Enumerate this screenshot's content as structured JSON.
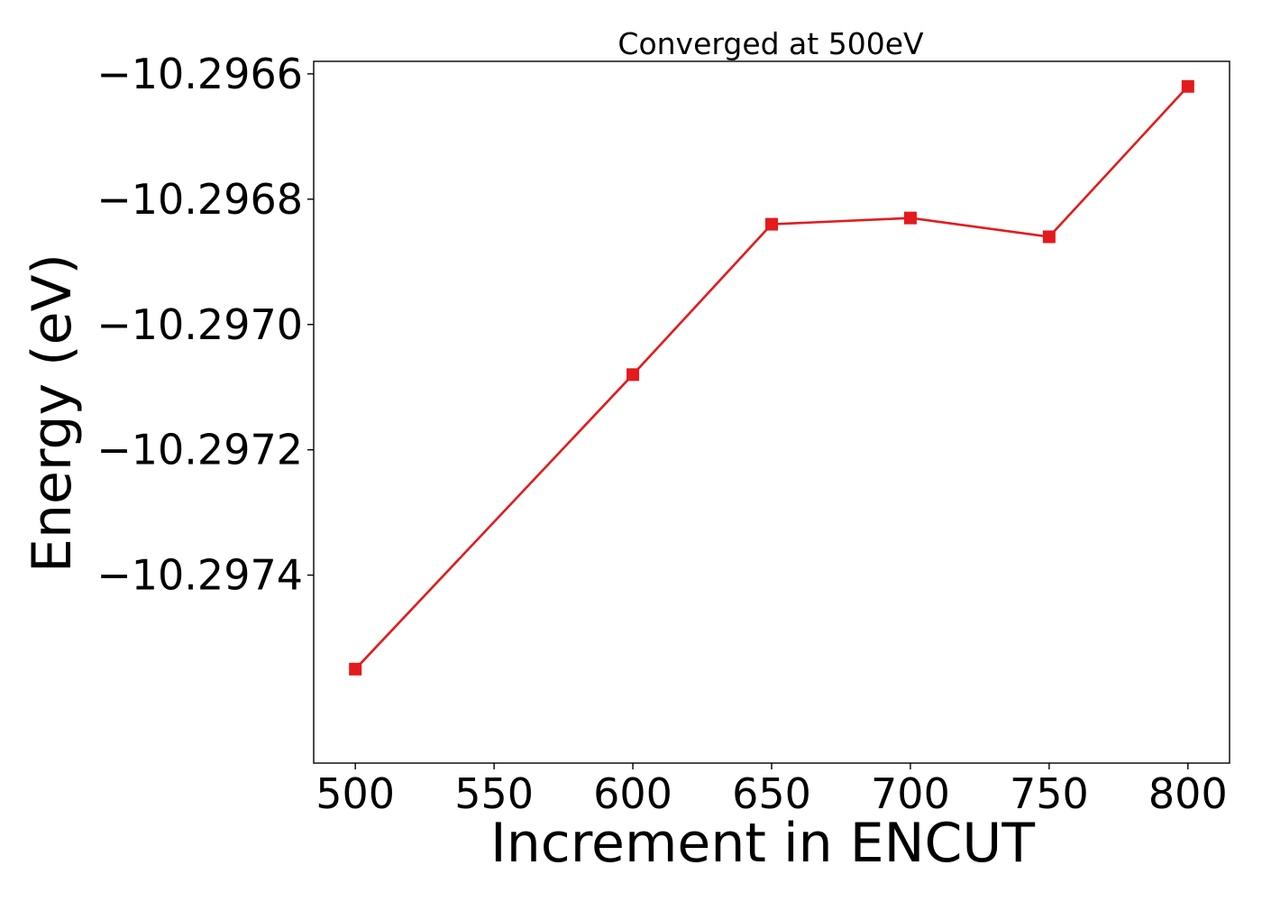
{
  "chart_data": {
    "type": "line",
    "title": "Converged at 500eV",
    "xlabel": "Increment in ENCUT",
    "ylabel": "Energy (eV)",
    "x": [
      500,
      600,
      650,
      700,
      750,
      800
    ],
    "series": [
      {
        "values": [
          -10.29755,
          -10.29708,
          -10.29684,
          -10.29683,
          -10.29686,
          -10.29662
        ],
        "color": "#e41a1c",
        "marker": "square"
      }
    ],
    "xticks": [
      500,
      550,
      600,
      650,
      700,
      750,
      800
    ],
    "xtick_labels": [
      "500",
      "550",
      "600",
      "650",
      "700",
      "750",
      "800"
    ],
    "yticks": [
      -10.2966,
      -10.2968,
      -10.297,
      -10.2972,
      -10.2974
    ],
    "ytick_labels": [
      "−10.2966",
      "−10.2968",
      "−10.2970",
      "−10.2972",
      "−10.2974"
    ],
    "xlim": [
      485,
      815
    ],
    "ylim": [
      -10.2977,
      -10.29658
    ],
    "grid": false,
    "legend": "none"
  }
}
